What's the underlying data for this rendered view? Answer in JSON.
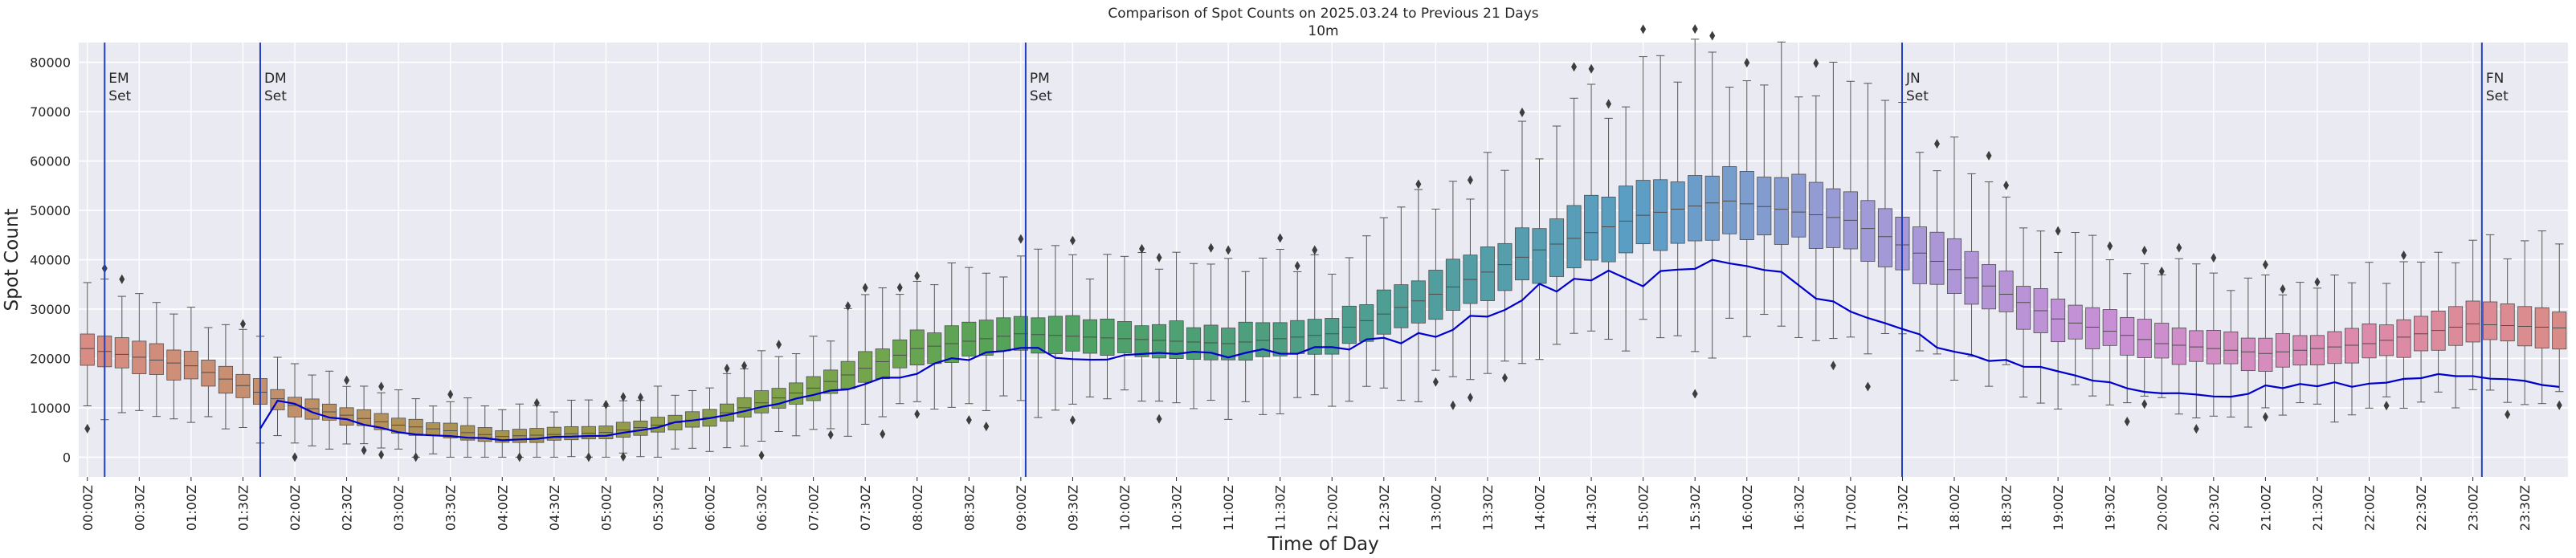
{
  "chart_data": {
    "type": "box",
    "title": "Comparison of Spot Counts on 2025.03.24 to Previous 21 Days",
    "subtitle": "10m",
    "xlabel": "Time of Day",
    "ylabel": "Spot Count",
    "ylim": [
      -4000,
      84000
    ],
    "yticks": [
      0,
      10000,
      20000,
      30000,
      40000,
      50000,
      60000,
      70000,
      80000
    ],
    "bins_per_day": 144,
    "bin_minutes": 10,
    "xtick_labels": [
      "00:00Z",
      "00:30Z",
      "01:00Z",
      "01:30Z",
      "02:00Z",
      "02:30Z",
      "03:00Z",
      "03:30Z",
      "04:00Z",
      "04:30Z",
      "05:00Z",
      "05:30Z",
      "06:00Z",
      "06:30Z",
      "07:00Z",
      "07:30Z",
      "08:00Z",
      "08:30Z",
      "09:00Z",
      "09:30Z",
      "10:00Z",
      "10:30Z",
      "11:00Z",
      "11:30Z",
      "12:00Z",
      "12:30Z",
      "13:00Z",
      "13:30Z",
      "14:00Z",
      "14:30Z",
      "15:00Z",
      "15:30Z",
      "16:00Z",
      "16:30Z",
      "17:00Z",
      "17:30Z",
      "18:00Z",
      "18:30Z",
      "19:00Z",
      "19:30Z",
      "20:00Z",
      "20:30Z",
      "21:00Z",
      "21:30Z",
      "22:00Z",
      "22:30Z",
      "23:00Z",
      "23:30Z"
    ],
    "median_anchors_hour": [
      0,
      1,
      2,
      3,
      4,
      5,
      6,
      7,
      8,
      9,
      10,
      11,
      12,
      13,
      14,
      15,
      15.8,
      17,
      18,
      19,
      20,
      21,
      22,
      23,
      24
    ],
    "median_anchors_value": [
      22000,
      18500,
      10500,
      6500,
      4200,
      5000,
      8000,
      14000,
      22000,
      25000,
      24000,
      23000,
      25000,
      33000,
      42000,
      49000,
      52000,
      48000,
      38000,
      28000,
      23000,
      21000,
      23000,
      27000,
      26000
    ],
    "current_day_anchors_hour": [
      1.7,
      1.85,
      2.1,
      3,
      4,
      5,
      6,
      7,
      8,
      9.1,
      9.35,
      10,
      11,
      12,
      13,
      14,
      14.7,
      15,
      15.8,
      16.3,
      17,
      17.5,
      17.8,
      18.5,
      19,
      20,
      20.5,
      21,
      22,
      23,
      23.8
    ],
    "current_day_anchors_value": [
      6000,
      12000,
      9500,
      5000,
      3500,
      4500,
      8000,
      12500,
      17500,
      23500,
      20500,
      20000,
      21000,
      22000,
      25000,
      34000,
      38000,
      35500,
      40000,
      38000,
      29000,
      27000,
      22000,
      19000,
      17500,
      13000,
      12000,
      14000,
      15000,
      17000,
      14500
    ],
    "current_day_series_name": "2025.03.24",
    "event_markers": [
      {
        "label": "EM",
        "sublabel": "Set",
        "hour": 0.25
      },
      {
        "label": "DM",
        "sublabel": "Set",
        "hour": 1.75
      },
      {
        "label": "PM",
        "sublabel": "Set",
        "hour": 9.13
      },
      {
        "label": "JN",
        "sublabel": "Set",
        "hour": 17.58
      },
      {
        "label": "FN",
        "sublabel": "Set",
        "hour": 23.17
      }
    ],
    "colors": {
      "background": "#eaeaf2",
      "grid": "#ffffff",
      "current_line": "#0000cc",
      "marker_line": "#1f3fbf",
      "whisker": "#555555",
      "outlier": "#3d3d3d"
    },
    "box_hues": [
      {
        "hour": 0,
        "color": "#d98c84"
      },
      {
        "hour": 4,
        "color": "#a6944c"
      },
      {
        "hour": 7.5,
        "color": "#73a64c"
      },
      {
        "hour": 9,
        "color": "#4fa35a"
      },
      {
        "hour": 12,
        "color": "#4c9e8a"
      },
      {
        "hour": 15,
        "color": "#5c9ec6"
      },
      {
        "hour": 17,
        "color": "#9d9bd6"
      },
      {
        "hour": 19.5,
        "color": "#c98fd6"
      },
      {
        "hour": 22,
        "color": "#de8aaa"
      },
      {
        "hour": 24,
        "color": "#d98c84"
      }
    ]
  }
}
